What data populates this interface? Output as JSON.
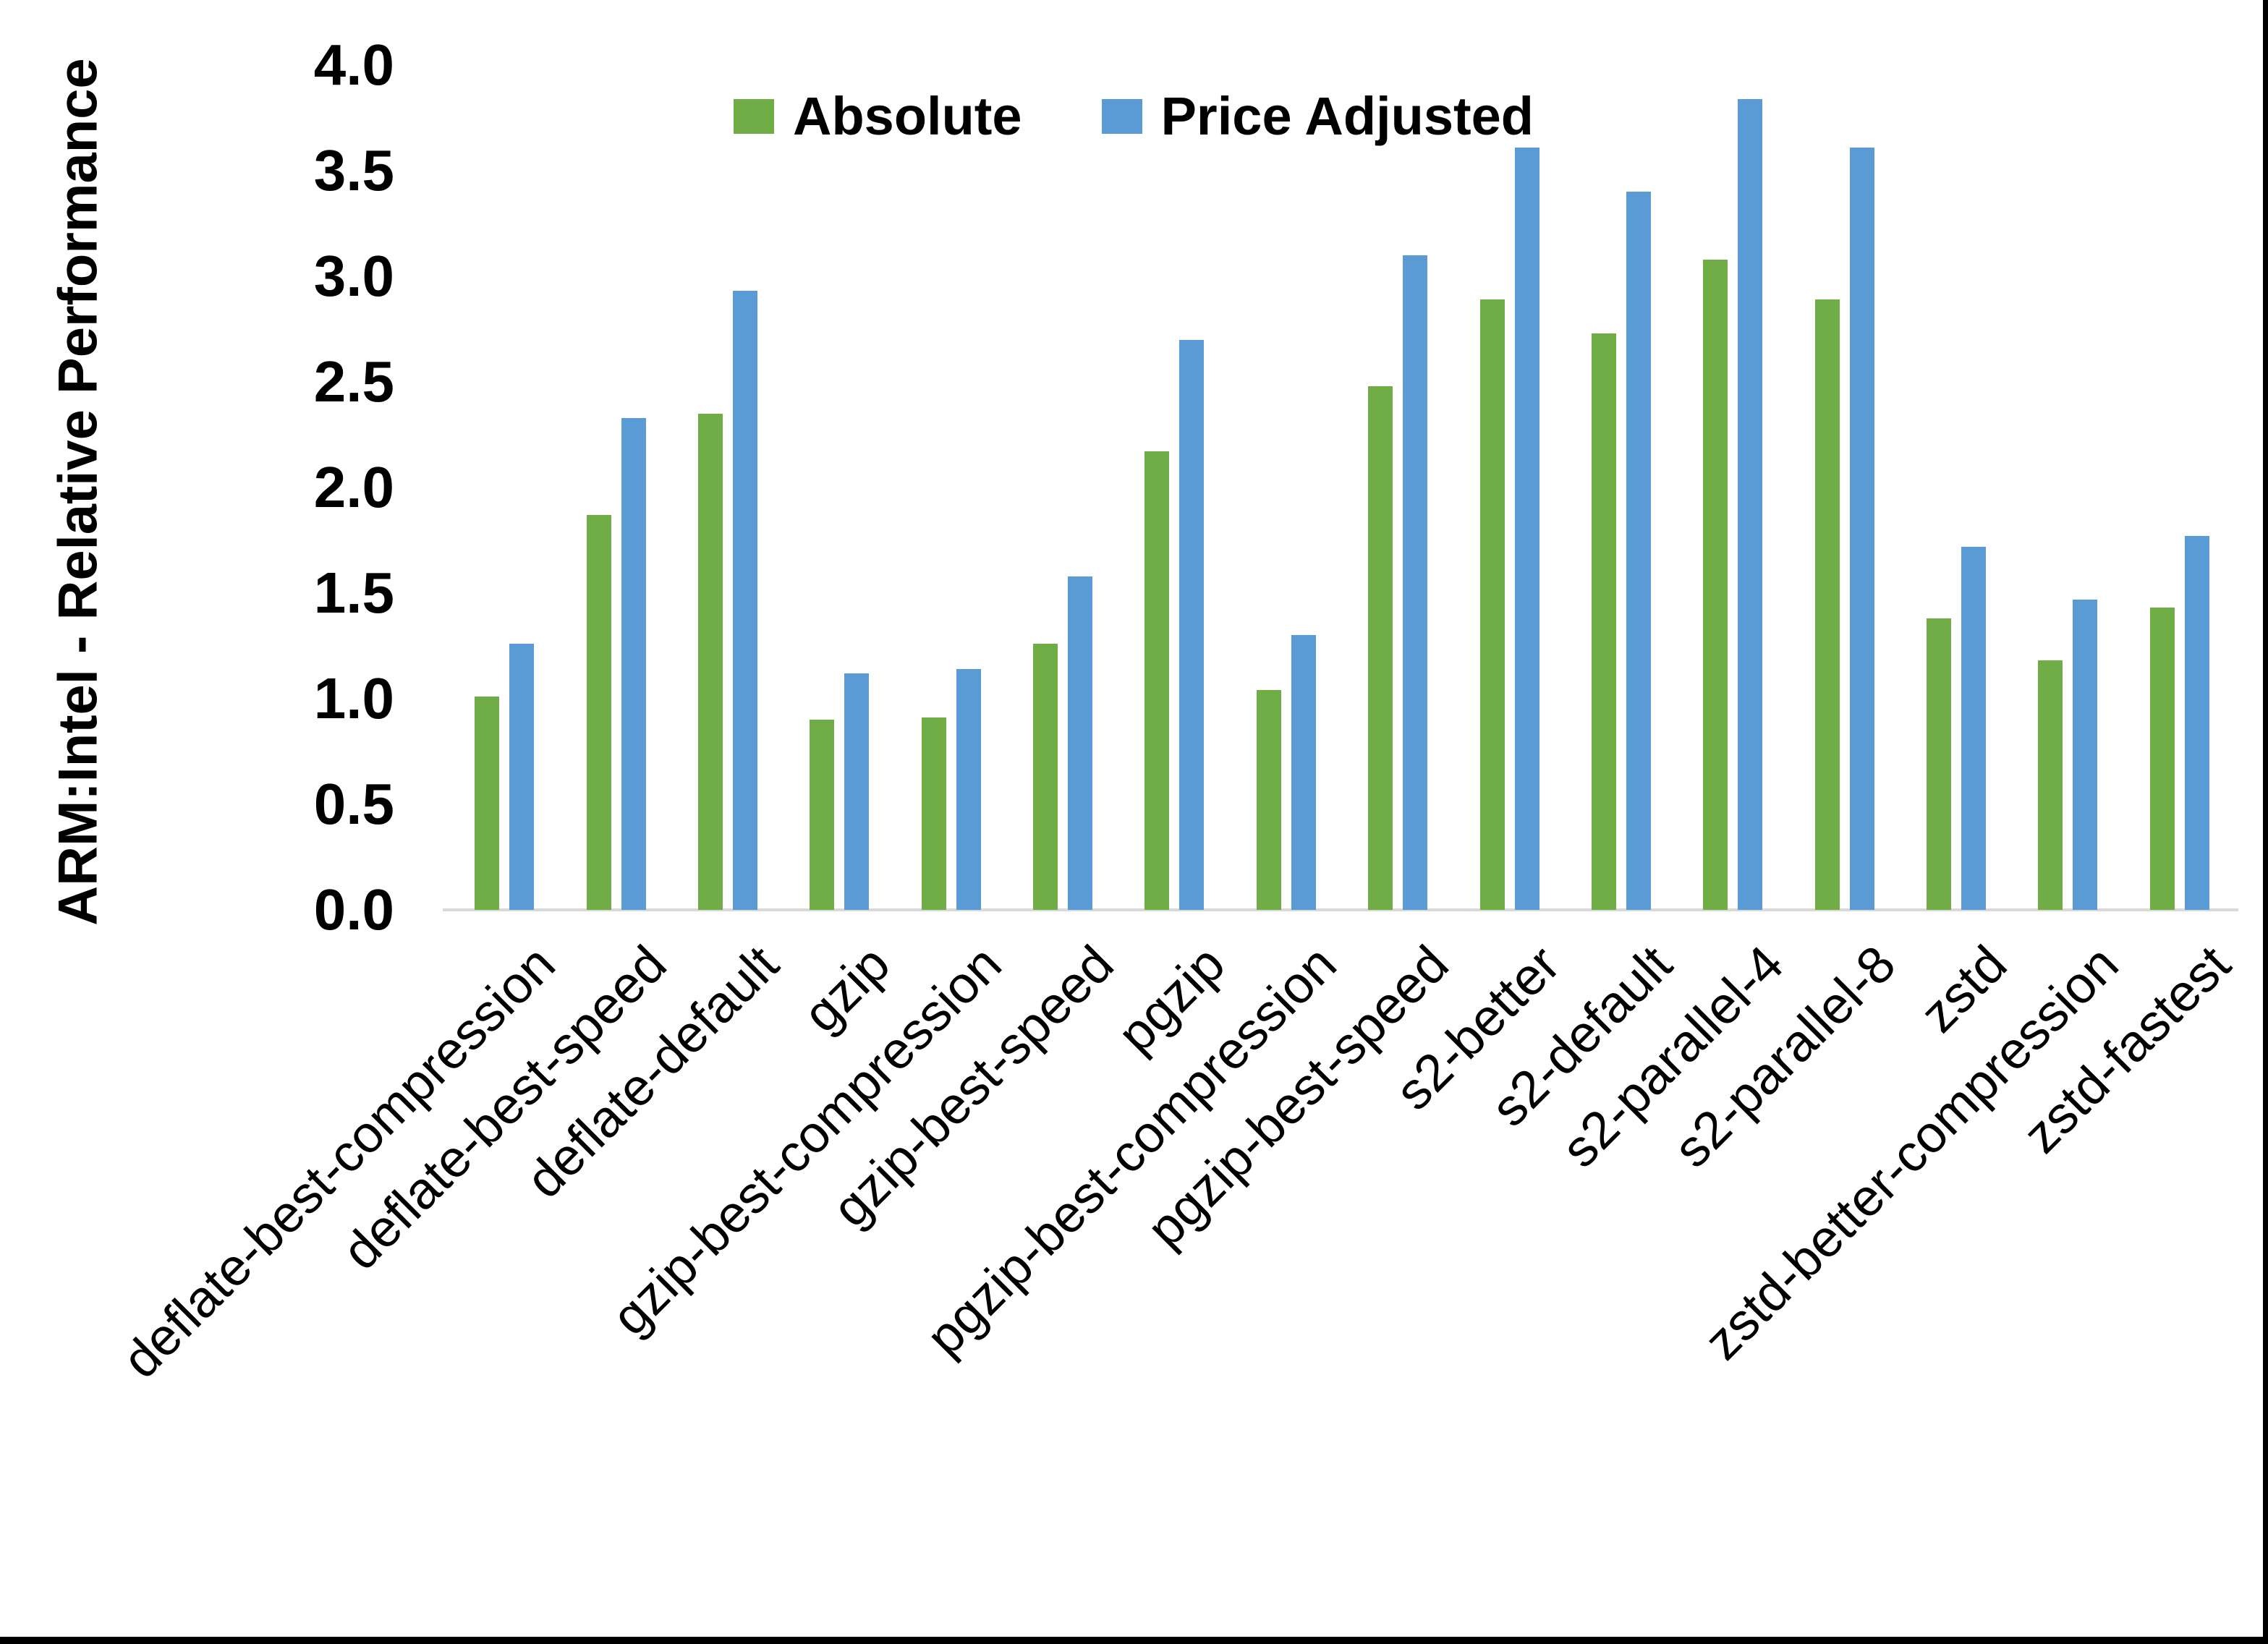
{
  "chart_data": {
    "type": "bar",
    "title": "",
    "xlabel": "",
    "ylabel": "ARM:Intel - Relative Performance",
    "ylim": [
      0.0,
      4.0
    ],
    "ytick_step": 0.5,
    "yticks": [
      "4.0",
      "3.5",
      "3.0",
      "2.5",
      "2.0",
      "1.5",
      "1.0",
      "0.5",
      "0.0"
    ],
    "grid": false,
    "legend_position": "top-center",
    "axis_line_color": "#D9D9D9",
    "categories": [
      "deflate-best-compression",
      "deflate-best-speed",
      "deflate-default",
      "gzip",
      "gzip-best-compression",
      "gzip-best-speed",
      "pgzip",
      "pgzip-best-compression",
      "pgzip-best-speed",
      "s2-better",
      "s2-default",
      "s2-parallel-4",
      "s2-parallel-8",
      "zstd",
      "zstd-better-compression",
      "zstd-fastest"
    ],
    "series": [
      {
        "name": "Absolute",
        "color": "#70AD47",
        "values": [
          1.01,
          1.87,
          2.35,
          0.9,
          0.91,
          1.26,
          2.17,
          1.04,
          2.48,
          2.89,
          2.73,
          3.08,
          2.89,
          1.38,
          1.18,
          1.43
        ]
      },
      {
        "name": "Price Adjusted",
        "color": "#5B9BD5",
        "values": [
          1.26,
          2.33,
          2.93,
          1.12,
          1.14,
          1.58,
          2.7,
          1.3,
          3.1,
          3.61,
          3.4,
          3.84,
          3.61,
          1.72,
          1.47,
          1.77
        ]
      }
    ]
  }
}
